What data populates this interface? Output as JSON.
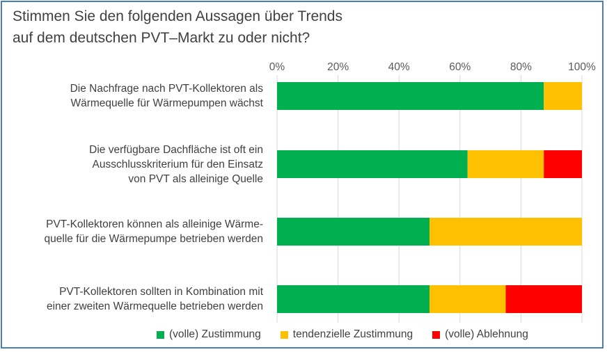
{
  "chart_data": {
    "type": "bar",
    "orientation": "horizontal",
    "stacked": true,
    "title": "Stimmen Sie den folgenden Aussagen über Trends\nauf dem deutschen  PVT–Markt zu oder nicht?",
    "categories": [
      "Die Nachfrage nach PVT-Kollektoren als\nWärmequelle für Wärmepumpen wächst",
      "Die verfügbare Dachfläche ist oft ein\nAusschlusskriterium für den Einsatz\nvon PVT als  alleinige Quelle",
      "PVT-Kollektoren können als alleinige Wärme-\nquelle für die Wärmepumpe betrieben werden",
      "PVT-Kollektoren sollten in Kombination mit\neiner zweiten Wärmequelle betrieben werden"
    ],
    "series": [
      {
        "name": "(volle) Zustimmung",
        "color": "#00B050",
        "values": [
          87.5,
          62.5,
          50,
          50
        ]
      },
      {
        "name": "tendenzielle Zustimmung",
        "color": "#FFC000",
        "values": [
          12.5,
          25,
          50,
          25
        ]
      },
      {
        "name": "(volle) Ablehnung",
        "color": "#FF0000",
        "values": [
          0,
          12.5,
          0,
          25
        ]
      }
    ],
    "xlim": [
      0,
      100
    ],
    "xticks": [
      "0%",
      "20%",
      "40%",
      "60%",
      "80%",
      "100%"
    ],
    "xaxis_position": "top",
    "grid": true,
    "legend": "bottom"
  },
  "frame_color": "#4a7ebb"
}
